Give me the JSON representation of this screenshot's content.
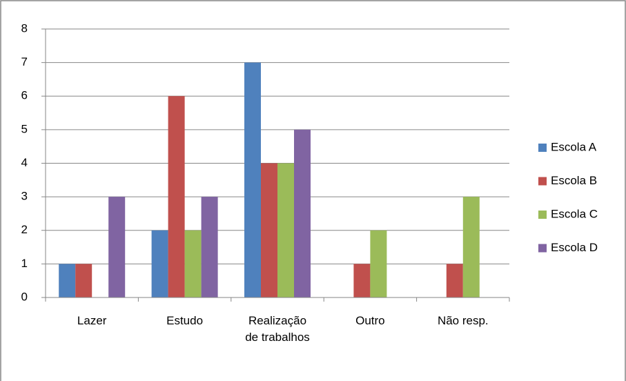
{
  "chart_data": {
    "type": "bar",
    "categories": [
      "Lazer",
      "Estudo",
      "Realização de trabalhos",
      "Outro",
      "Não resp."
    ],
    "series": [
      {
        "name": "Escola A",
        "color": "#4f81bd",
        "values": [
          1,
          2,
          7,
          0,
          0
        ]
      },
      {
        "name": "Escola B",
        "color": "#c0504d",
        "values": [
          1,
          6,
          4,
          1,
          1
        ]
      },
      {
        "name": "Escola C",
        "color": "#9bbb59",
        "values": [
          0,
          2,
          4,
          2,
          3
        ]
      },
      {
        "name": "Escola D",
        "color": "#8064a2",
        "values": [
          3,
          3,
          5,
          0,
          0
        ]
      }
    ],
    "ylim": [
      0,
      8
    ],
    "yticks": [
      0,
      1,
      2,
      3,
      4,
      5,
      6,
      7,
      8
    ],
    "grid": true,
    "legend": "right"
  }
}
